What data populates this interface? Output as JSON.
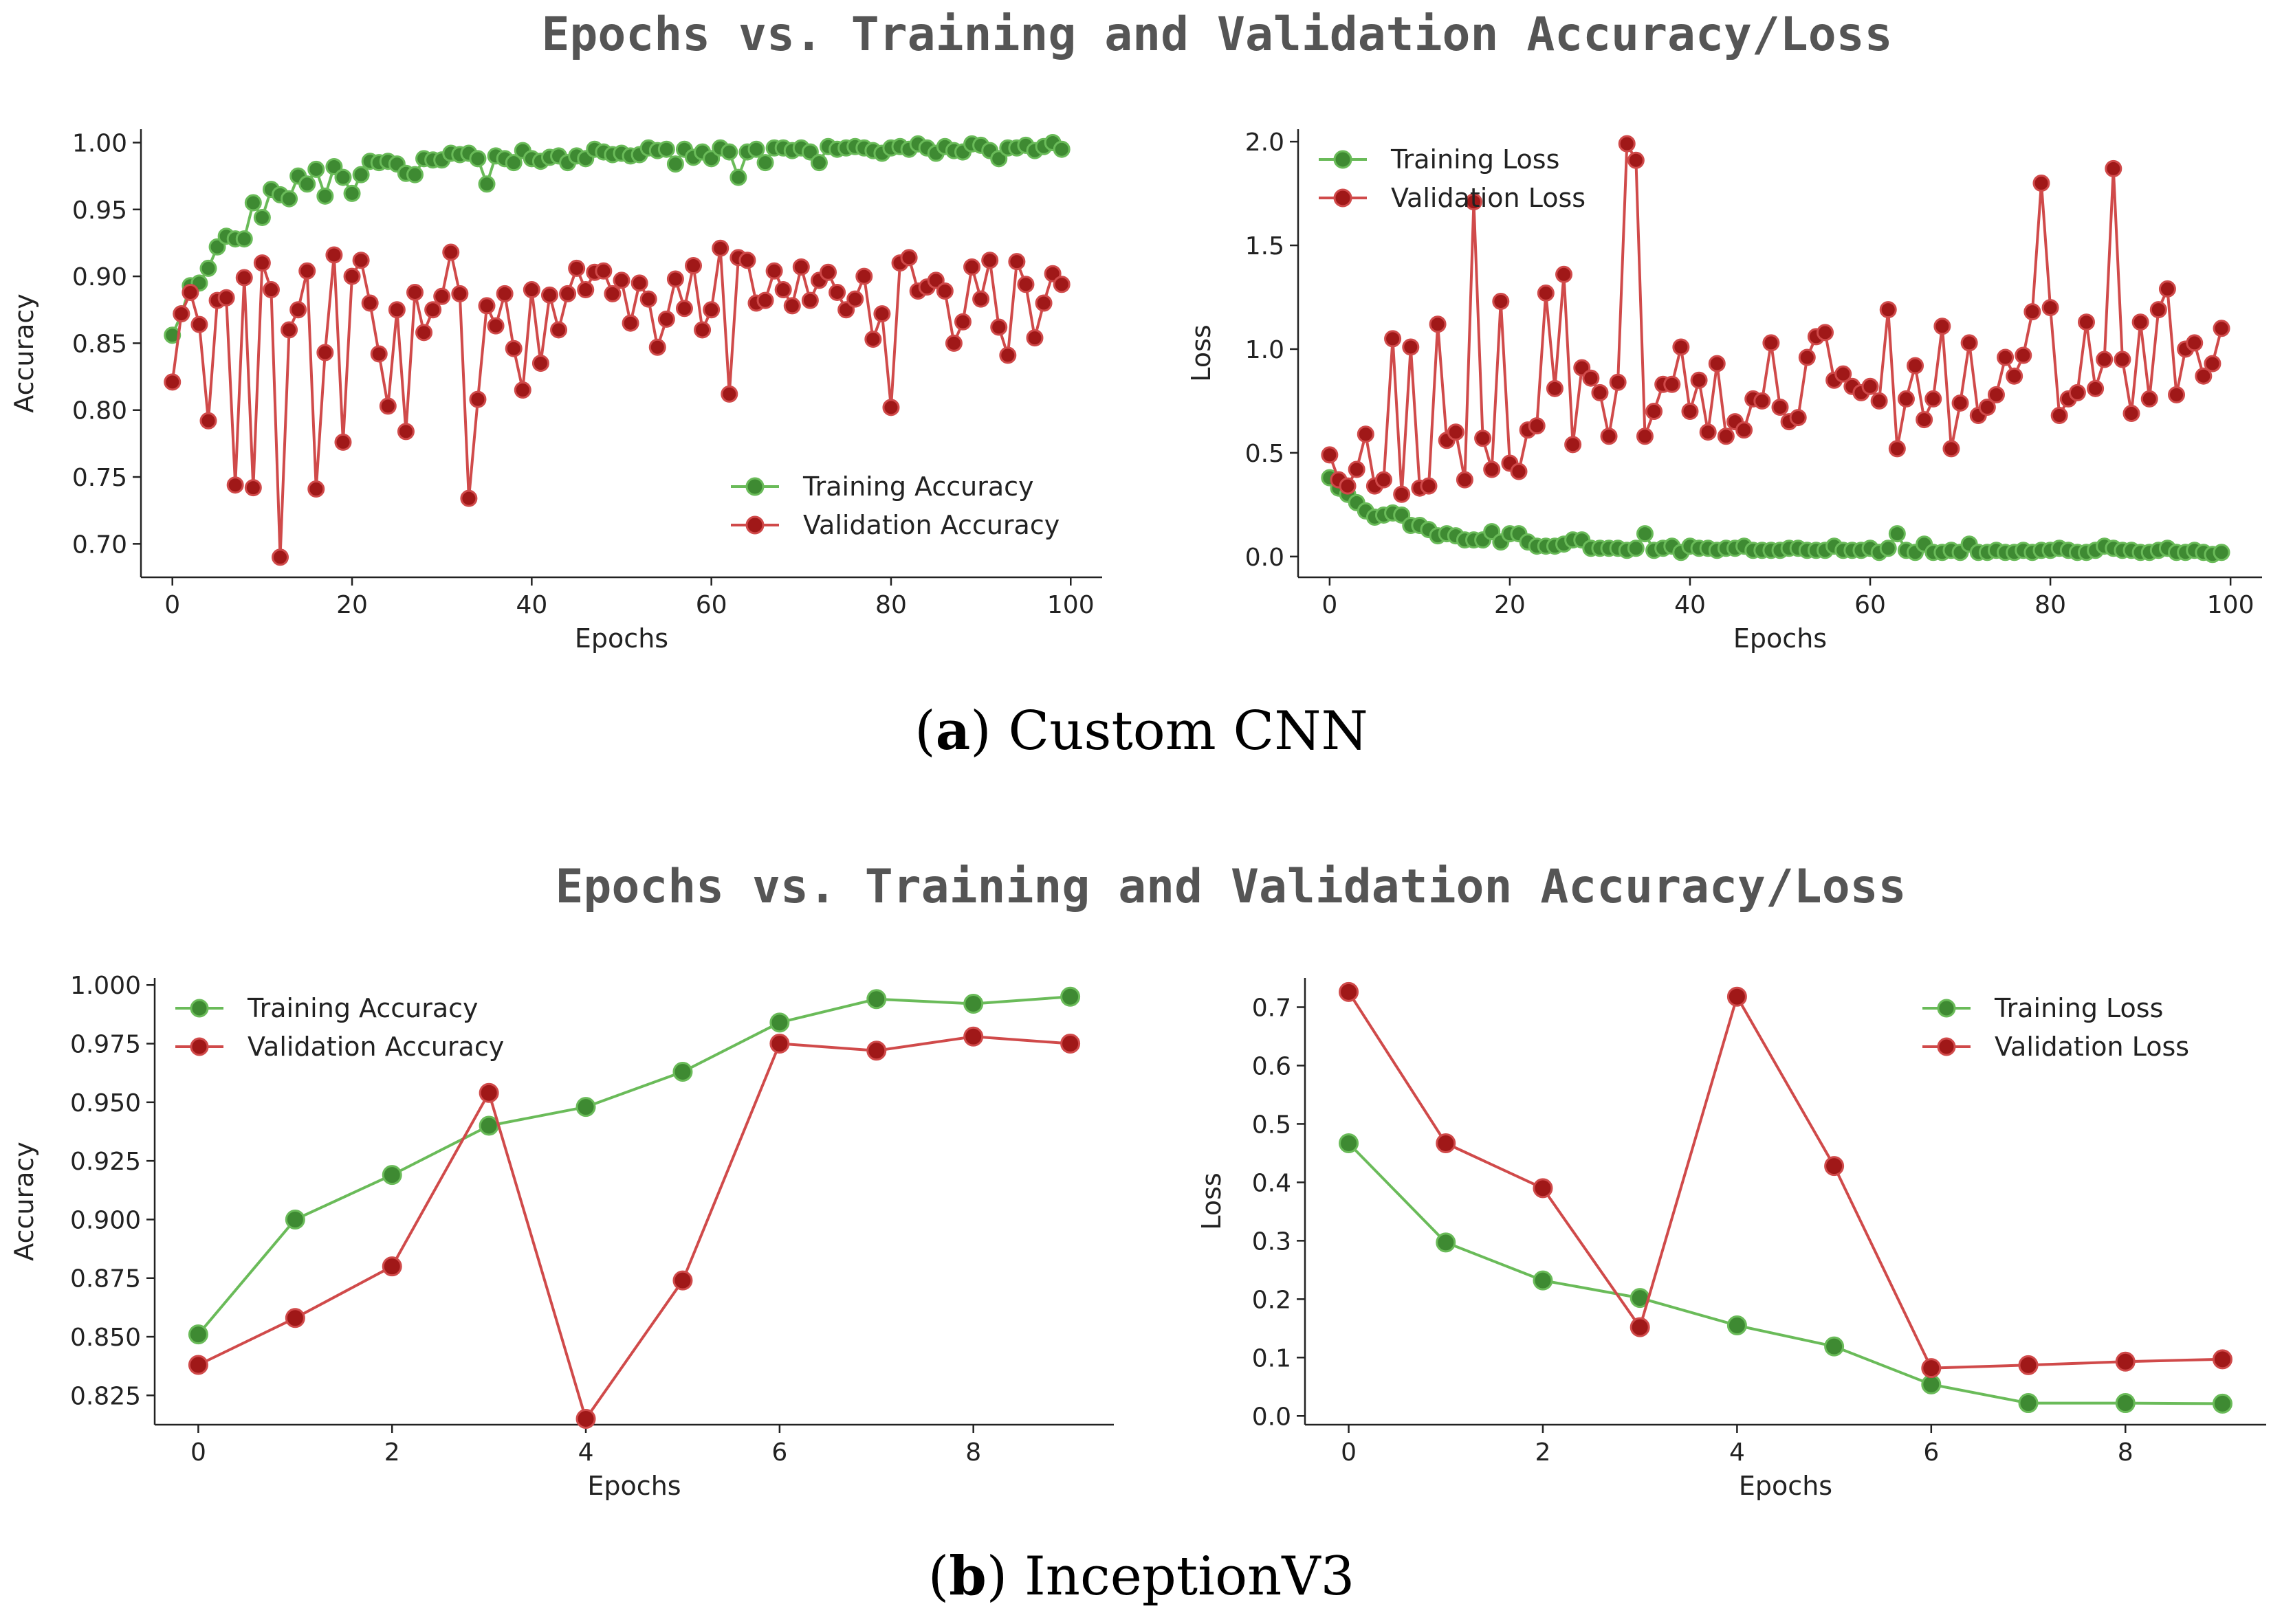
{
  "figure": {
    "rows": [
      {
        "title": "Epochs vs. Training and Validation Accuracy/Loss",
        "caption_letter": "a",
        "caption_text": "Custom CNN"
      },
      {
        "title": "Epochs vs. Training and Validation Accuracy/Loss",
        "caption_letter": "b",
        "caption_text": "InceptionV3"
      }
    ],
    "colors": {
      "train": "#6abb59",
      "train_marker": "#3e8a32",
      "val": "#d04a4a",
      "val_marker": "#a01818"
    }
  },
  "chart_data": [
    {
      "type": "line",
      "id": "cnn-accuracy",
      "title": "",
      "xlabel": "Epochs",
      "ylabel": "Accuracy",
      "xlim": [
        -3.5,
        103.5
      ],
      "ylim": [
        0.675,
        1.01
      ],
      "xticks": [
        0,
        20,
        40,
        60,
        80,
        100
      ],
      "xtick_labels": [
        "0",
        "20",
        "40",
        "60",
        "80",
        "100"
      ],
      "yticks": [
        0.7,
        0.75,
        0.8,
        0.85,
        0.9,
        0.95,
        1.0
      ],
      "ytick_labels": [
        "0.70",
        "0.75",
        "0.80",
        "0.85",
        "0.90",
        "0.95",
        "1.00"
      ],
      "legend_position": "bottom-right",
      "series": [
        {
          "name": "Training Accuracy",
          "values": [
            0.856,
            0.872,
            0.893,
            0.895,
            0.906,
            0.922,
            0.93,
            0.928,
            0.928,
            0.955,
            0.944,
            0.965,
            0.961,
            0.958,
            0.975,
            0.969,
            0.98,
            0.96,
            0.982,
            0.974,
            0.962,
            0.976,
            0.986,
            0.985,
            0.986,
            0.984,
            0.977,
            0.976,
            0.988,
            0.987,
            0.987,
            0.992,
            0.991,
            0.992,
            0.988,
            0.969,
            0.99,
            0.988,
            0.985,
            0.994,
            0.988,
            0.986,
            0.989,
            0.99,
            0.985,
            0.99,
            0.988,
            0.995,
            0.993,
            0.991,
            0.992,
            0.99,
            0.991,
            0.996,
            0.994,
            0.995,
            0.984,
            0.995,
            0.989,
            0.993,
            0.988,
            0.996,
            0.993,
            0.974,
            0.993,
            0.995,
            0.985,
            0.996,
            0.996,
            0.994,
            0.996,
            0.993,
            0.985,
            0.997,
            0.995,
            0.996,
            0.997,
            0.996,
            0.994,
            0.992,
            0.996,
            0.997,
            0.995,
            0.999,
            0.996,
            0.992,
            0.997,
            0.994,
            0.993,
            0.999,
            0.998,
            0.994,
            0.988,
            0.996,
            0.996,
            0.998,
            0.994,
            0.997,
            1.0,
            0.995
          ]
        },
        {
          "name": "Validation Accuracy",
          "values": [
            0.821,
            0.872,
            0.888,
            0.864,
            0.792,
            0.882,
            0.884,
            0.744,
            0.899,
            0.742,
            0.91,
            0.89,
            0.69,
            0.86,
            0.875,
            0.904,
            0.741,
            0.843,
            0.916,
            0.776,
            0.9,
            0.912,
            0.88,
            0.842,
            0.803,
            0.875,
            0.784,
            0.888,
            0.858,
            0.875,
            0.885,
            0.918,
            0.887,
            0.734,
            0.808,
            0.878,
            0.863,
            0.887,
            0.846,
            0.815,
            0.89,
            0.835,
            0.886,
            0.86,
            0.887,
            0.906,
            0.89,
            0.903,
            0.904,
            0.887,
            0.897,
            0.865,
            0.895,
            0.883,
            0.847,
            0.868,
            0.898,
            0.876,
            0.908,
            0.86,
            0.875,
            0.921,
            0.812,
            0.914,
            0.912,
            0.88,
            0.882,
            0.904,
            0.89,
            0.878,
            0.907,
            0.882,
            0.897,
            0.903,
            0.888,
            0.875,
            0.883,
            0.9,
            0.853,
            0.872,
            0.802,
            0.91,
            0.914,
            0.889,
            0.892,
            0.897,
            0.889,
            0.85,
            0.866,
            0.907,
            0.883,
            0.912,
            0.862,
            0.841,
            0.911,
            0.894,
            0.854,
            0.88,
            0.902,
            0.894
          ]
        }
      ]
    },
    {
      "type": "line",
      "id": "cnn-loss",
      "title": "",
      "xlabel": "Epochs",
      "ylabel": "Loss",
      "xlim": [
        -3.5,
        103.5
      ],
      "ylim": [
        -0.1,
        2.06
      ],
      "xticks": [
        0,
        20,
        40,
        60,
        80,
        100
      ],
      "xtick_labels": [
        "0",
        "20",
        "40",
        "60",
        "80",
        "100"
      ],
      "yticks": [
        0.0,
        0.5,
        1.0,
        1.5,
        2.0
      ],
      "ytick_labels": [
        "0.0",
        "0.5",
        "1.0",
        "1.5",
        "2.0"
      ],
      "legend_position": "top-left",
      "series": [
        {
          "name": "Training Loss",
          "values": [
            0.38,
            0.33,
            0.3,
            0.26,
            0.22,
            0.19,
            0.2,
            0.21,
            0.2,
            0.15,
            0.15,
            0.13,
            0.1,
            0.11,
            0.1,
            0.08,
            0.08,
            0.08,
            0.12,
            0.07,
            0.11,
            0.11,
            0.07,
            0.05,
            0.05,
            0.05,
            0.06,
            0.08,
            0.08,
            0.04,
            0.04,
            0.04,
            0.04,
            0.03,
            0.04,
            0.11,
            0.03,
            0.04,
            0.05,
            0.02,
            0.05,
            0.04,
            0.04,
            0.03,
            0.04,
            0.04,
            0.05,
            0.03,
            0.03,
            0.03,
            0.03,
            0.04,
            0.04,
            0.03,
            0.03,
            0.03,
            0.05,
            0.03,
            0.03,
            0.03,
            0.04,
            0.02,
            0.04,
            0.11,
            0.03,
            0.02,
            0.06,
            0.02,
            0.02,
            0.03,
            0.02,
            0.06,
            0.02,
            0.02,
            0.03,
            0.02,
            0.02,
            0.03,
            0.02,
            0.03,
            0.03,
            0.04,
            0.03,
            0.02,
            0.02,
            0.03,
            0.05,
            0.04,
            0.03,
            0.03,
            0.02,
            0.02,
            0.03,
            0.04,
            0.02,
            0.02,
            0.03,
            0.02,
            0.01,
            0.02
          ]
        },
        {
          "name": "Validation Loss",
          "values": [
            0.49,
            0.37,
            0.34,
            0.42,
            0.59,
            0.34,
            0.37,
            1.05,
            0.3,
            1.01,
            0.33,
            0.34,
            1.12,
            0.56,
            0.6,
            0.37,
            1.71,
            0.57,
            0.42,
            1.23,
            0.45,
            0.41,
            0.61,
            0.63,
            1.27,
            0.81,
            1.36,
            0.54,
            0.91,
            0.86,
            0.79,
            0.58,
            0.84,
            1.99,
            1.91,
            0.58,
            0.7,
            0.83,
            0.83,
            1.01,
            0.7,
            0.85,
            0.6,
            0.93,
            0.58,
            0.65,
            0.61,
            0.76,
            0.75,
            1.03,
            0.72,
            0.65,
            0.67,
            0.96,
            1.06,
            1.08,
            0.85,
            0.88,
            0.82,
            0.79,
            0.82,
            0.75,
            1.19,
            0.52,
            0.76,
            0.92,
            0.66,
            0.76,
            1.11,
            0.52,
            0.74,
            1.03,
            0.68,
            0.72,
            0.78,
            0.96,
            0.87,
            0.97,
            1.18,
            1.8,
            1.2,
            0.68,
            0.76,
            0.79,
            1.13,
            0.81,
            0.95,
            1.87,
            0.95,
            0.69,
            1.13,
            0.76,
            1.19,
            1.29,
            0.78,
            1.0,
            1.03,
            0.87,
            0.93,
            1.1
          ]
        }
      ]
    },
    {
      "type": "line",
      "id": "inception-accuracy",
      "title": "",
      "xlabel": "Epochs",
      "ylabel": "Accuracy",
      "xlim": [
        -0.45,
        9.45
      ],
      "ylim": [
        0.8125,
        1.003
      ],
      "xticks": [
        0,
        2,
        4,
        6,
        8
      ],
      "xtick_labels": [
        "0",
        "2",
        "4",
        "6",
        "8"
      ],
      "yticks": [
        0.825,
        0.85,
        0.875,
        0.9,
        0.925,
        0.95,
        0.975,
        1.0
      ],
      "ytick_labels": [
        "0.825",
        "0.850",
        "0.875",
        "0.900",
        "0.925",
        "0.950",
        "0.975",
        "1.000"
      ],
      "legend_position": "top-left",
      "series": [
        {
          "name": "Training Accuracy",
          "values": [
            0.851,
            0.9,
            0.919,
            0.94,
            0.948,
            0.963,
            0.984,
            0.994,
            0.992,
            0.995
          ]
        },
        {
          "name": "Validation Accuracy",
          "values": [
            0.838,
            0.858,
            0.88,
            0.954,
            0.815,
            0.874,
            0.975,
            0.972,
            0.978,
            0.975
          ]
        }
      ]
    },
    {
      "type": "line",
      "id": "inception-loss",
      "title": "",
      "xlabel": "Epochs",
      "ylabel": "Loss",
      "xlim": [
        -0.45,
        9.45
      ],
      "ylim": [
        -0.015,
        0.75
      ],
      "xticks": [
        0,
        2,
        4,
        6,
        8
      ],
      "xtick_labels": [
        "0",
        "2",
        "4",
        "6",
        "8"
      ],
      "yticks": [
        0.0,
        0.1,
        0.2,
        0.3,
        0.4,
        0.5,
        0.6,
        0.7
      ],
      "ytick_labels": [
        "0.0",
        "0.1",
        "0.2",
        "0.3",
        "0.4",
        "0.5",
        "0.6",
        "0.7"
      ],
      "legend_position": "top-right",
      "series": [
        {
          "name": "Training Loss",
          "values": [
            0.467,
            0.297,
            0.232,
            0.202,
            0.155,
            0.119,
            0.054,
            0.022,
            0.022,
            0.021
          ]
        },
        {
          "name": "Validation Loss",
          "values": [
            0.726,
            0.467,
            0.39,
            0.152,
            0.718,
            0.428,
            0.082,
            0.087,
            0.093,
            0.097
          ]
        }
      ]
    }
  ]
}
